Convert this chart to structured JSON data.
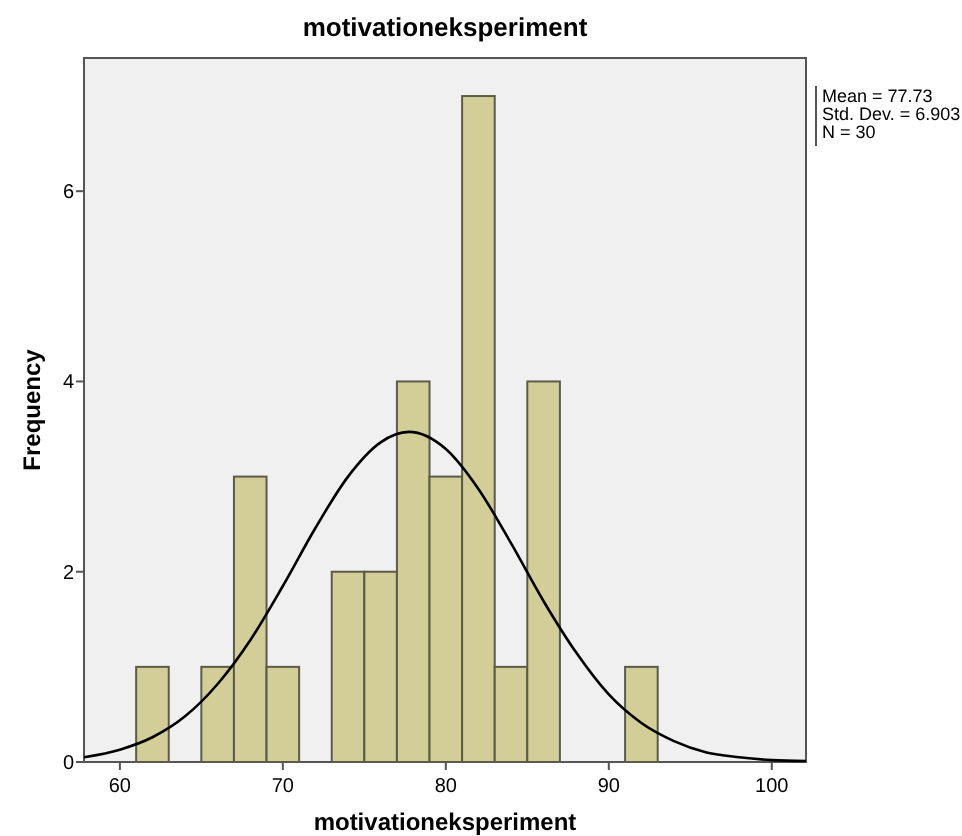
{
  "chart_data": {
    "type": "histogram",
    "title": "motivationeksperiment",
    "xlabel": "motivationeksperiment",
    "ylabel": "Frequency",
    "bins": [
      61,
      63,
      65,
      67,
      69,
      71,
      73,
      75,
      77,
      79,
      81,
      83,
      85,
      87,
      89,
      91,
      93
    ],
    "series": [
      {
        "color": "#d3ce97",
        "values": [
          1,
          0,
          1,
          3,
          1,
          0,
          2,
          2,
          4,
          3,
          7,
          1,
          4,
          0,
          0,
          1
        ]
      },
      {
        "type": "line",
        "color": "#000000",
        "x": [
          57.8,
          60,
          62,
          64,
          66,
          68,
          70,
          72,
          74,
          76,
          77.73,
          80,
          82,
          84,
          86,
          88,
          90,
          92,
          94,
          96,
          98,
          100,
          102.1
        ],
        "values": [
          0.05,
          0.13,
          0.26,
          0.48,
          0.82,
          1.28,
          1.85,
          2.46,
          3.0,
          3.36,
          3.47,
          3.29,
          2.87,
          2.3,
          1.69,
          1.15,
          0.71,
          0.41,
          0.22,
          0.1,
          0.05,
          0.02,
          0.01
        ]
      }
    ],
    "xlim": [
      57.8,
      102.1
    ],
    "ylim": [
      0,
      7.4
    ],
    "xticks": [
      60,
      70,
      80,
      90,
      100
    ],
    "yticks": [
      0,
      2,
      4,
      6
    ],
    "grid": false,
    "annotations": [
      "Mean = 77.73",
      "Std. Dev. = 6.903",
      "N = 30"
    ]
  }
}
